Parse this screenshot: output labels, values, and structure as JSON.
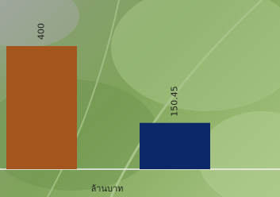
{
  "chart_data": {
    "type": "bar",
    "x_label": "ล้านบาท",
    "categories": [
      null,
      null
    ],
    "values": [
      400,
      150.45
    ],
    "colors": [
      "#a5561f",
      "#0c2868"
    ]
  }
}
